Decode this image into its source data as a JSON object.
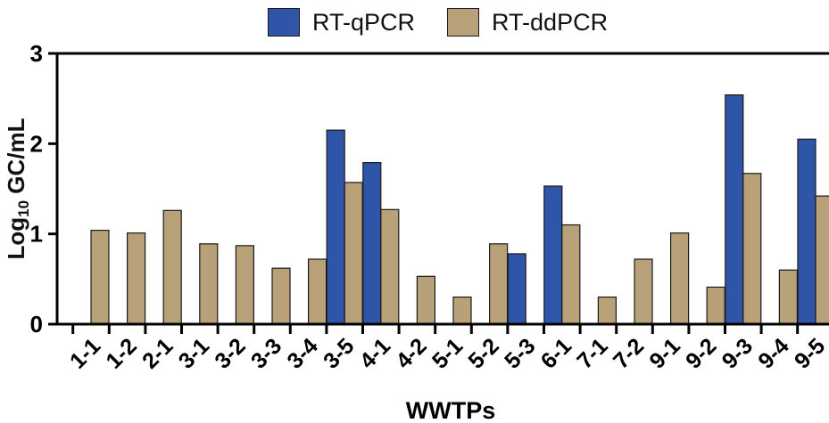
{
  "chart_data": {
    "type": "bar",
    "title": "",
    "xlabel": "WWTPs",
    "ylabel": {
      "prefix": "Log",
      "subscript": "10",
      "suffix": " GC/mL"
    },
    "ylim": [
      0,
      3
    ],
    "yticks": [
      "0",
      "1",
      "2",
      "3"
    ],
    "grid": false,
    "legend_position": "top",
    "categories": [
      "1-1",
      "1-2",
      "2-1",
      "3-1",
      "3-2",
      "3-3",
      "3-4",
      "3-5",
      "4-1",
      "4-2",
      "5-1",
      "5-2",
      "5-3",
      "6-1",
      "7-1",
      "7-2",
      "9-1",
      "9-2",
      "9-3",
      "9-4",
      "9-5"
    ],
    "series": [
      {
        "name": "RT-qPCR",
        "color": "#2f55a8",
        "values": [
          null,
          null,
          null,
          null,
          null,
          null,
          null,
          2.15,
          1.79,
          null,
          null,
          null,
          0.78,
          1.53,
          null,
          null,
          null,
          null,
          2.54,
          null,
          2.05
        ]
      },
      {
        "name": "RT-ddPCR",
        "color": "#b8a178",
        "values": [
          1.04,
          1.01,
          1.26,
          0.89,
          0.87,
          0.62,
          0.72,
          1.57,
          1.27,
          0.53,
          0.3,
          0.89,
          null,
          1.1,
          0.3,
          0.72,
          1.01,
          0.41,
          1.67,
          0.6,
          1.42
        ]
      }
    ]
  }
}
